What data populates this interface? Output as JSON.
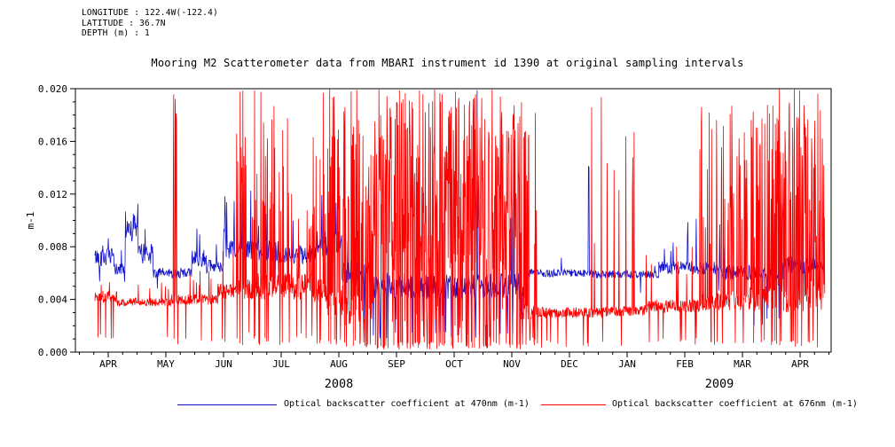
{
  "header": {
    "longitude": "LONGITUDE : 122.4W(-122.4)",
    "latitude": "LATITUDE : 36.7N",
    "depth": "DEPTH (m) : 1"
  },
  "title": "Mooring M2 Scatterometer data from MBARI instrument id 1390 at original sampling intervals",
  "legend": [
    {
      "label": "Optical backscatter coefficient at 470nm (m-1)",
      "color": "#1212cc"
    },
    {
      "label": "Optical backscatter coefficient at 676nm (m-1)",
      "color": "#ff0000"
    }
  ],
  "chart_data": {
    "type": "line",
    "title": "Mooring M2 Scatterometer data from MBARI instrument id 1390 at original sampling intervals",
    "xlabel": "",
    "ylabel": "m-1",
    "ylim": [
      0.0,
      0.02
    ],
    "yticks": [
      "0.000",
      "0.004",
      "0.008",
      "0.012",
      "0.016",
      "0.020"
    ],
    "ytick_values": [
      0.0,
      0.004,
      0.008,
      0.012,
      0.016,
      0.02
    ],
    "minor_ytick_step": 0.001,
    "grid": false,
    "legend_position": "bottom",
    "x_months": [
      "APR",
      "MAY",
      "JUN",
      "JUL",
      "AUG",
      "SEP",
      "OCT",
      "NOV",
      "DEC",
      "JAN",
      "FEB",
      "MAR",
      "APR"
    ],
    "year_labels": [
      {
        "text": "2008",
        "month_pos": 4.0
      },
      {
        "text": "2009",
        "month_pos": 10.6
      }
    ],
    "x_range_months": [
      -0.23,
      12.43
    ],
    "segment_columns": [
      "m_start",
      "m_end",
      "baseline",
      "noise",
      "spike_prob",
      "spike_min",
      "spike_max",
      "dip_prob",
      "dip_level"
    ],
    "series": [
      {
        "id": "obs470",
        "name": "Optical backscatter coefficient at 470nm (m-1)",
        "color": "#1212cc",
        "segments": [
          [
            -0.23,
            0.1,
            0.0072,
            0.0007,
            0.04,
            0.008,
            0.0098,
            0.03,
            0.005
          ],
          [
            0.1,
            0.3,
            0.0063,
            0.0005,
            0.02,
            0.007,
            0.008,
            0.01,
            0.0052
          ],
          [
            0.3,
            0.52,
            0.0095,
            0.0012,
            0.12,
            0.0105,
            0.015,
            0.0,
            0.0
          ],
          [
            0.52,
            0.78,
            0.0075,
            0.0008,
            0.05,
            0.009,
            0.0102,
            0.0,
            0.0
          ],
          [
            0.78,
            1.45,
            0.006,
            0.0004,
            0.02,
            0.0068,
            0.0076,
            0.01,
            0.0046
          ],
          [
            1.45,
            1.7,
            0.0072,
            0.0007,
            0.08,
            0.008,
            0.0096,
            0.0,
            0.0
          ],
          [
            1.7,
            2.0,
            0.0065,
            0.0005,
            0.03,
            0.0075,
            0.0085,
            0.0,
            0.0
          ],
          [
            2.0,
            2.95,
            0.0077,
            0.0008,
            0.07,
            0.009,
            0.0128,
            0.01,
            0.005
          ],
          [
            2.95,
            3.6,
            0.0074,
            0.0007,
            0.06,
            0.0085,
            0.0106,
            0.01,
            0.005
          ],
          [
            3.6,
            4.05,
            0.0082,
            0.001,
            0.1,
            0.01,
            0.0136,
            0.01,
            0.005
          ],
          [
            4.05,
            4.55,
            0.006,
            0.001,
            0.05,
            0.008,
            0.01,
            0.05,
            0.002
          ],
          [
            4.55,
            7.25,
            0.005,
            0.001,
            0.02,
            0.007,
            0.02,
            0.05,
            0.001
          ],
          [
            7.25,
            8.25,
            0.006,
            0.0003,
            0.01,
            0.0066,
            0.0072,
            0.003,
            0.004
          ],
          [
            8.25,
            8.4,
            0.006,
            0.0003,
            0.08,
            0.008,
            0.018,
            0.0,
            0.0
          ],
          [
            8.4,
            9.55,
            0.0059,
            0.0003,
            0.01,
            0.0065,
            0.0071,
            0.003,
            0.004
          ],
          [
            9.55,
            10.65,
            0.0064,
            0.0005,
            0.05,
            0.0075,
            0.011,
            0.01,
            0.0045
          ],
          [
            10.65,
            11.7,
            0.006,
            0.0006,
            0.03,
            0.007,
            0.012,
            0.03,
            0.002
          ],
          [
            11.7,
            12.43,
            0.0066,
            0.0007,
            0.06,
            0.008,
            0.0106,
            0.02,
            0.004
          ]
        ]
      },
      {
        "id": "obs676",
        "name": "Optical backscatter coefficient at 676nm (m-1)",
        "color": "#ff0000",
        "segments": [
          [
            -0.23,
            0.15,
            0.0042,
            0.0005,
            0.03,
            0.005,
            0.0058,
            0.06,
            0.001
          ],
          [
            0.15,
            1.1,
            0.0038,
            0.0003,
            0.02,
            0.0045,
            0.0056,
            0.02,
            0.001
          ],
          [
            1.1,
            1.22,
            0.004,
            0.0004,
            0.28,
            0.014,
            0.02,
            0.05,
            0.0005
          ],
          [
            1.22,
            1.9,
            0.004,
            0.0004,
            0.03,
            0.005,
            0.0066,
            0.04,
            0.0005
          ],
          [
            1.9,
            2.18,
            0.0046,
            0.0006,
            0.06,
            0.006,
            0.009,
            0.05,
            0.0005
          ],
          [
            2.18,
            2.4,
            0.0048,
            0.0008,
            0.3,
            0.012,
            0.02,
            0.05,
            0.0005
          ],
          [
            2.4,
            2.6,
            0.0048,
            0.0008,
            0.1,
            0.008,
            0.02,
            0.05,
            0.001
          ],
          [
            2.6,
            3.15,
            0.005,
            0.001,
            0.25,
            0.01,
            0.02,
            0.06,
            0.0005
          ],
          [
            3.15,
            3.55,
            0.005,
            0.001,
            0.08,
            0.007,
            0.014,
            0.06,
            0.001
          ],
          [
            3.55,
            3.8,
            0.0048,
            0.001,
            0.18,
            0.01,
            0.02,
            0.06,
            0.0005
          ],
          [
            3.8,
            4.1,
            0.004,
            0.0012,
            0.25,
            0.01,
            0.02,
            0.1,
            0.0005
          ],
          [
            4.1,
            4.6,
            0.0032,
            0.0012,
            0.45,
            0.008,
            0.02,
            0.15,
            0.0003
          ],
          [
            4.6,
            7.15,
            0.003,
            0.0012,
            0.68,
            0.006,
            0.02,
            0.2,
            0.0002
          ],
          [
            7.15,
            7.45,
            0.003,
            0.0006,
            0.15,
            0.005,
            0.02,
            0.08,
            0.0005
          ],
          [
            7.45,
            8.3,
            0.003,
            0.0004,
            0.02,
            0.006,
            0.0126,
            0.04,
            0.0003
          ],
          [
            8.3,
            8.6,
            0.003,
            0.0004,
            0.04,
            0.008,
            0.02,
            0.04,
            0.0003
          ],
          [
            8.6,
            9.3,
            0.0031,
            0.0004,
            0.025,
            0.01,
            0.02,
            0.04,
            0.0003
          ],
          [
            9.3,
            10.25,
            0.0035,
            0.0005,
            0.03,
            0.0055,
            0.009,
            0.03,
            0.0005
          ],
          [
            10.25,
            10.75,
            0.0038,
            0.0007,
            0.12,
            0.008,
            0.02,
            0.05,
            0.0005
          ],
          [
            10.75,
            11.45,
            0.004,
            0.001,
            0.3,
            0.008,
            0.02,
            0.08,
            0.0005
          ],
          [
            11.45,
            12.43,
            0.0042,
            0.0012,
            0.5,
            0.008,
            0.02,
            0.1,
            0.0003
          ]
        ]
      }
    ]
  }
}
